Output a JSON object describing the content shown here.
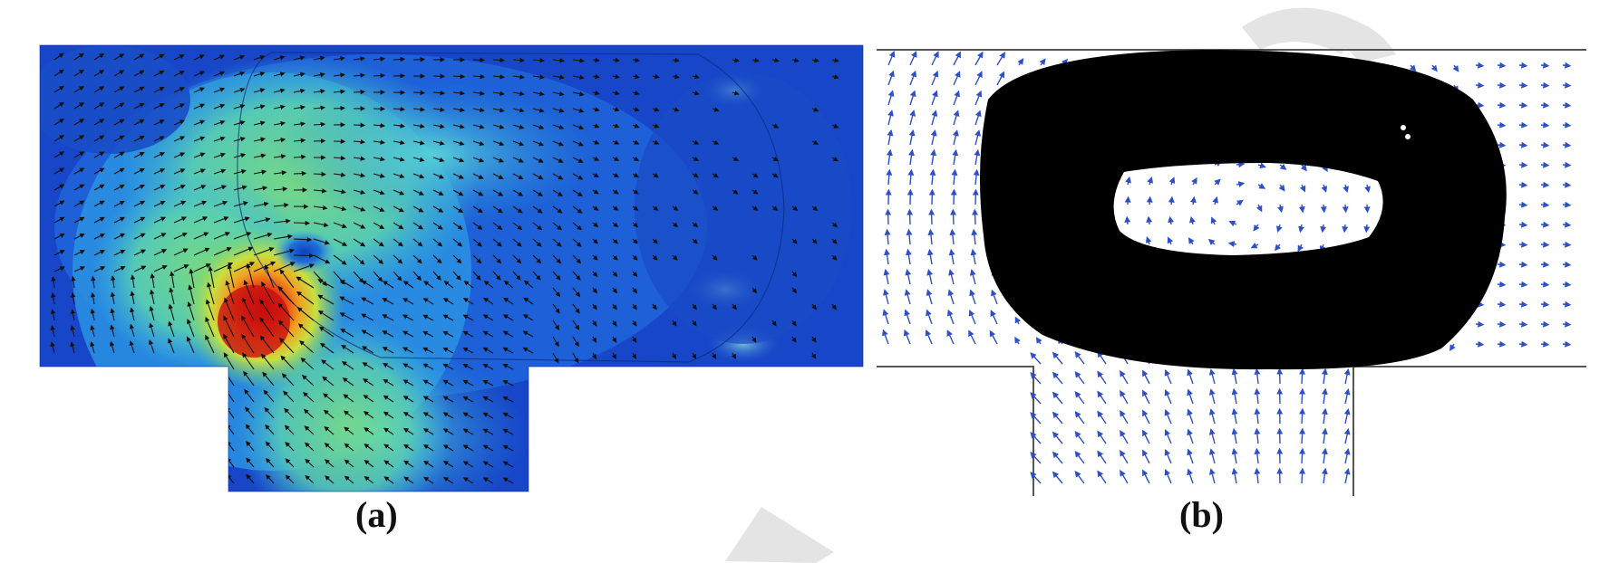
{
  "panels": [
    {
      "id": "a",
      "caption": "(a)",
      "kind": "velocity magnitude color map with black flow arrows",
      "colormap": [
        "#0a2fbf",
        "#1a66e0",
        "#2aa8e8",
        "#6ad8c8",
        "#7fe07a",
        "#e8e040",
        "#f08020",
        "#d01010"
      ]
    },
    {
      "id": "b",
      "caption": "(b)",
      "kind": "black ring-shaped droplet with blue flow arrows",
      "arrow_color": "#2f4fc8",
      "droplet_color": "#000000"
    }
  ],
  "watermark_color": "#d9d9d9"
}
